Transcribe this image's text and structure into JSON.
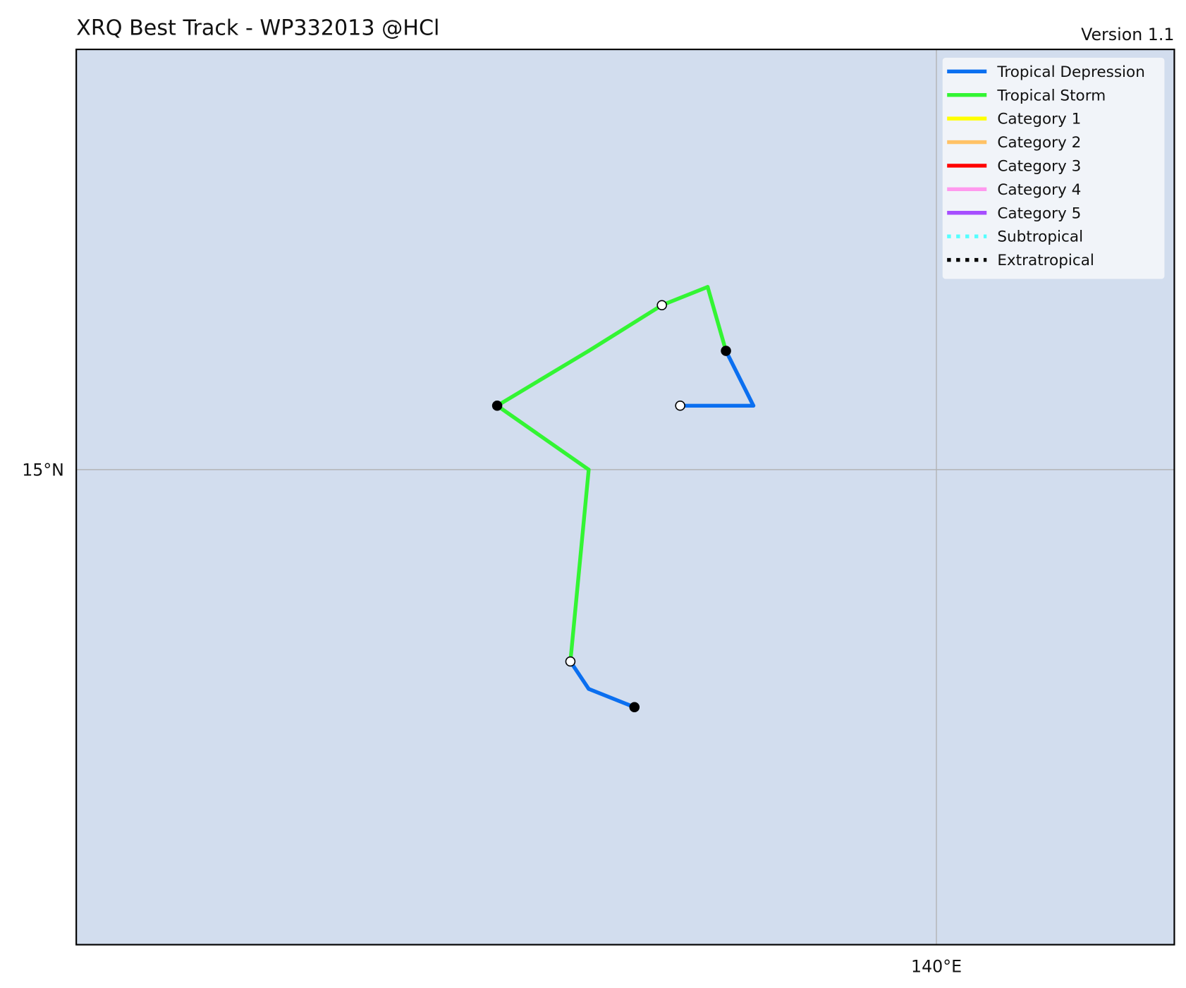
{
  "chart_data": {
    "type": "track",
    "title": "XRQ Best Track - WP332013  @HCl",
    "subtitle": "Version 1.1",
    "xlim": [
      130.6,
      142.6
    ],
    "ylim": [
      9.8,
      19.6
    ],
    "xticks": [
      {
        "value": 140,
        "label": "140°E"
      }
    ],
    "yticks": [
      {
        "value": 15,
        "label": "15°N"
      }
    ],
    "grid": true,
    "legend": "upper right",
    "series": [
      {
        "name": "Tropical Depression",
        "color": "#0b6ff0",
        "style": "solid"
      },
      {
        "name": "Tropical Storm",
        "color": "#33f533",
        "style": "solid"
      },
      {
        "name": "Category 1",
        "color": "#ffff00",
        "style": "solid"
      },
      {
        "name": "Category 2",
        "color": "#ffc266",
        "style": "solid"
      },
      {
        "name": "Category 3",
        "color": "#ff0000",
        "style": "solid"
      },
      {
        "name": "Category 4",
        "color": "#ff99ee",
        "style": "solid"
      },
      {
        "name": "Category 5",
        "color": "#a64dff",
        "style": "solid"
      },
      {
        "name": "Subtropical",
        "color": "#55ffff",
        "style": "dotted"
      },
      {
        "name": "Extratropical",
        "color": "#000000",
        "style": "dotted"
      }
    ],
    "points": [
      {
        "lon": 136.7,
        "lat": 12.4,
        "status": "Tropical Depression",
        "marker": "filled"
      },
      {
        "lon": 136.2,
        "lat": 12.6,
        "status": "Tropical Depression",
        "marker": "none"
      },
      {
        "lon": 136.0,
        "lat": 12.9,
        "status": "Tropical Storm",
        "marker": "open"
      },
      {
        "lon": 136.2,
        "lat": 15.0,
        "status": "Tropical Storm",
        "marker": "none"
      },
      {
        "lon": 135.2,
        "lat": 15.7,
        "status": "Tropical Storm",
        "marker": "filled"
      },
      {
        "lon": 136.2,
        "lat": 16.3,
        "status": "Tropical Storm",
        "marker": "none"
      },
      {
        "lon": 137.0,
        "lat": 16.8,
        "status": "Tropical Storm",
        "marker": "open"
      },
      {
        "lon": 137.5,
        "lat": 17.0,
        "status": "Tropical Storm",
        "marker": "none"
      },
      {
        "lon": 137.7,
        "lat": 16.3,
        "status": "Tropical Depression",
        "marker": "filled"
      },
      {
        "lon": 138.0,
        "lat": 15.7,
        "status": "Tropical Depression",
        "marker": "none"
      },
      {
        "lon": 137.2,
        "lat": 15.7,
        "status": "Tropical Depression",
        "marker": "open"
      }
    ]
  }
}
